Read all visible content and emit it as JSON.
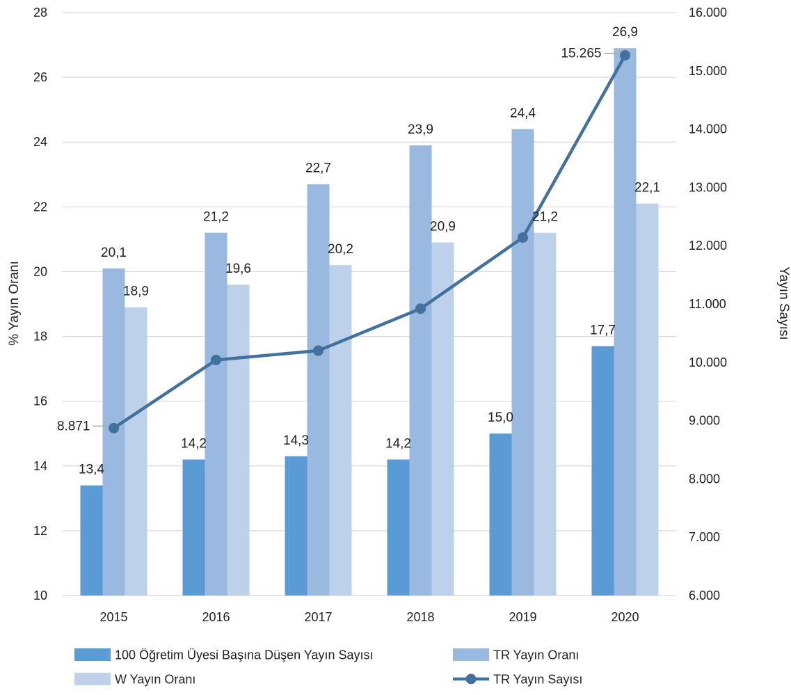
{
  "chart_data": {
    "type": "bar",
    "categories": [
      "2015",
      "2016",
      "2017",
      "2018",
      "2019",
      "2020"
    ],
    "series": [
      {
        "name": "100 Öğretim Üyesi Başına Düşen Yayın Sayısı",
        "type": "bar",
        "axis": "left",
        "color": "#5b9bd5",
        "values": [
          13.4,
          14.2,
          14.3,
          14.2,
          15.0,
          17.7
        ],
        "labels": [
          "13,4",
          "14,2",
          "14,3",
          "14,2",
          "15,0",
          "17,7"
        ]
      },
      {
        "name": "TR Yayın Oranı",
        "type": "bar",
        "axis": "left",
        "color": "#9ab9e0",
        "values": [
          20.1,
          21.2,
          22.7,
          23.9,
          24.4,
          26.9
        ],
        "labels": [
          "20,1",
          "21,2",
          "22,7",
          "23,9",
          "24,4",
          "26,9"
        ]
      },
      {
        "name": "W Yayın Oranı",
        "type": "bar",
        "axis": "left",
        "color": "#bed1ea",
        "values": [
          18.9,
          19.6,
          20.2,
          20.9,
          21.2,
          22.1
        ],
        "labels": [
          "18,9",
          "19,6",
          "20,2",
          "20,9",
          "21,2",
          "22,1"
        ]
      },
      {
        "name": "TR Yayın Sayısı",
        "type": "line",
        "axis": "right",
        "color": "#41719c",
        "values": [
          8871,
          10040,
          10200,
          10920,
          12140,
          15265
        ],
        "labels": [
          "8.871",
          "",
          "",
          "",
          "",
          "15.265"
        ]
      }
    ],
    "ylabel": "% Yayın Oranı",
    "y2label": "Yayın Sayısı",
    "ylim": [
      10,
      28
    ],
    "y2lim": [
      6000,
      16000
    ],
    "yticks": [
      "10",
      "12",
      "14",
      "16",
      "18",
      "20",
      "22",
      "24",
      "26",
      "28"
    ],
    "y2ticks": [
      "6.000",
      "7.000",
      "8.000",
      "9.000",
      "10.000",
      "11.000",
      "12.000",
      "13.000",
      "14.000",
      "15.000",
      "16.000"
    ],
    "grid": true,
    "legend_position": "bottom"
  }
}
